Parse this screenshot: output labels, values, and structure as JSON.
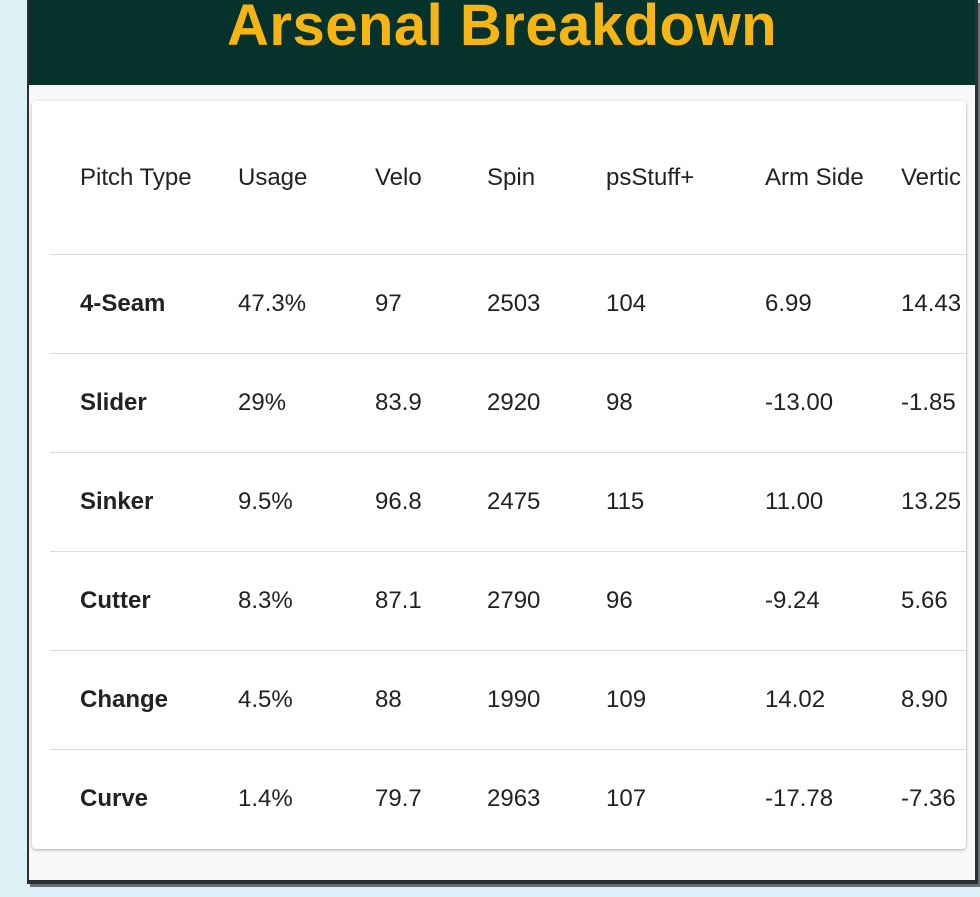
{
  "header": {
    "title": "Arsenal Breakdown"
  },
  "table": {
    "columns": [
      "Pitch Type",
      "Usage",
      "Velo",
      "Spin",
      "psStuff+",
      "Arm Side",
      "Vertic"
    ],
    "rows": [
      [
        "4-Seam",
        "47.3%",
        "97",
        "2503",
        "104",
        "6.99",
        "14.43"
      ],
      [
        "Slider",
        "29%",
        "83.9",
        "2920",
        "98",
        "-13.00",
        "-1.85"
      ],
      [
        "Sinker",
        "9.5%",
        "96.8",
        "2475",
        "115",
        "11.00",
        "13.25"
      ],
      [
        "Cutter",
        "8.3%",
        "87.1",
        "2790",
        "96",
        "-9.24",
        "5.66"
      ],
      [
        "Change",
        "4.5%",
        "88",
        "1990",
        "109",
        "14.02",
        "8.90"
      ],
      [
        "Curve",
        "1.4%",
        "79.7",
        "2963",
        "107",
        "-17.78",
        "-7.36"
      ]
    ]
  }
}
